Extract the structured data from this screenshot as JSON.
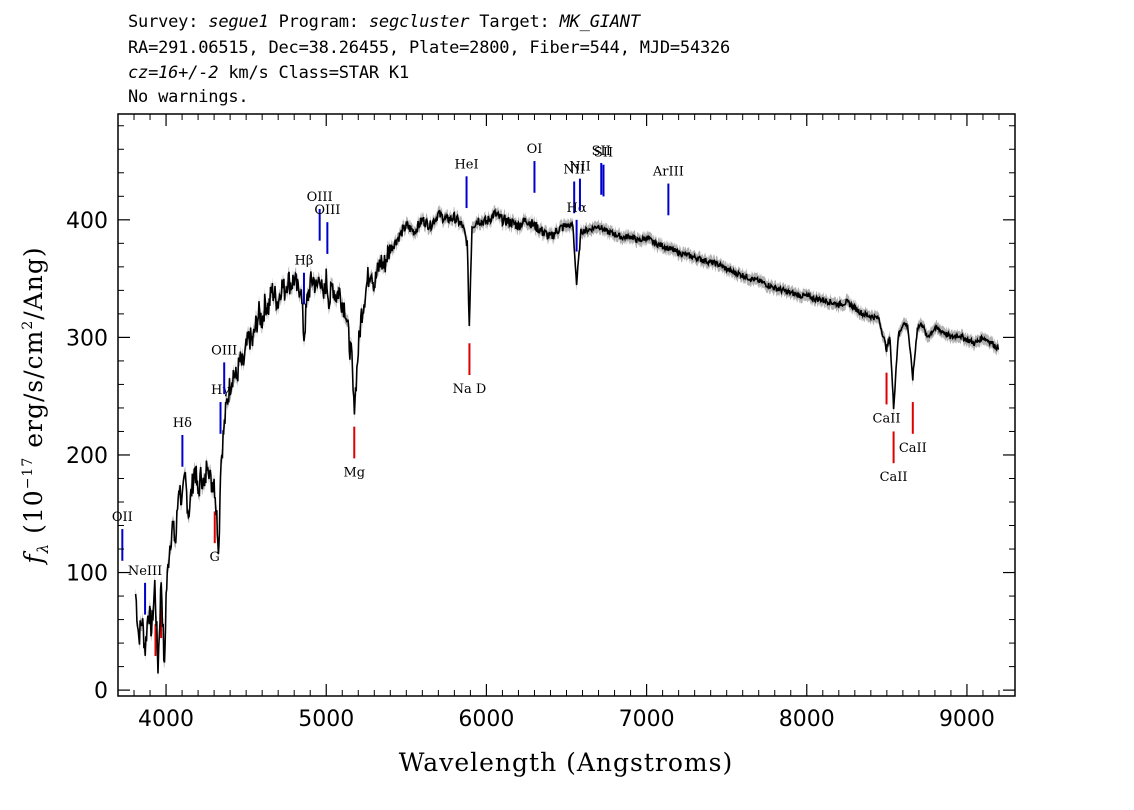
{
  "header": {
    "survey_label": "Survey:",
    "survey": "segue1",
    "program_label": "Program:",
    "program": "segcluster",
    "target_label": "Target:",
    "target": "MK_GIANT",
    "line2": "RA=291.06515, Dec=38.26455, Plate=2800, Fiber=544, MJD=54326",
    "cz": "cz=16+/-2",
    "cz_units": "km/s Class=STAR K1",
    "line4": "No warnings."
  },
  "chart_data": {
    "type": "line",
    "title": "",
    "xlabel": "Wavelength (Angstroms)",
    "ylabel": "f_λ (10^-17 erg/s/cm^2/Ang)",
    "xlim": [
      3700,
      9300
    ],
    "ylim": [
      -5,
      490
    ],
    "xticks": [
      4000,
      5000,
      6000,
      7000,
      8000,
      9000
    ],
    "yticks": [
      0,
      100,
      200,
      300,
      400
    ],
    "grid": false,
    "legend": "none",
    "series": [
      {
        "color": "#000000",
        "x": [
          3810,
          3830,
          3850,
          3870,
          3890,
          3910,
          3930,
          3950,
          3970,
          3990,
          4000,
          4020,
          4040,
          4060,
          4080,
          4100,
          4120,
          4140,
          4160,
          4180,
          4200,
          4220,
          4240,
          4260,
          4280,
          4300,
          4310,
          4320,
          4330,
          4340,
          4360,
          4380,
          4400,
          4420,
          4440,
          4460,
          4480,
          4500,
          4520,
          4540,
          4560,
          4580,
          4600,
          4620,
          4640,
          4660,
          4680,
          4700,
          4720,
          4740,
          4760,
          4780,
          4800,
          4820,
          4840,
          4861,
          4880,
          4900,
          4920,
          4940,
          4960,
          4980,
          5000,
          5020,
          5040,
          5060,
          5080,
          5100,
          5120,
          5140,
          5160,
          5172,
          5183,
          5200,
          5220,
          5240,
          5260,
          5280,
          5300,
          5320,
          5340,
          5360,
          5380,
          5400,
          5450,
          5500,
          5550,
          5600,
          5650,
          5700,
          5750,
          5800,
          5850,
          5880,
          5893,
          5910,
          5950,
          6000,
          6050,
          6100,
          6150,
          6200,
          6250,
          6300,
          6350,
          6400,
          6450,
          6500,
          6540,
          6563,
          6590,
          6650,
          6700,
          6750,
          6800,
          6850,
          6900,
          6950,
          7000,
          7050,
          7100,
          7150,
          7200,
          7250,
          7300,
          7350,
          7400,
          7450,
          7500,
          7550,
          7600,
          7650,
          7700,
          7750,
          7800,
          7850,
          7900,
          7950,
          8000,
          8050,
          8100,
          8150,
          8200,
          8250,
          8300,
          8350,
          8400,
          8450,
          8498,
          8520,
          8542,
          8570,
          8600,
          8630,
          8662,
          8690,
          8720,
          8750,
          8800,
          8850,
          8900,
          8950,
          9000,
          9050,
          9100,
          9150,
          9200
        ],
        "y": [
          82,
          45,
          60,
          35,
          70,
          50,
          90,
          20,
          95,
          15,
          80,
          120,
          140,
          125,
          175,
          160,
          180,
          150,
          170,
          190,
          165,
          185,
          170,
          200,
          175,
          180,
          160,
          140,
          120,
          190,
          220,
          245,
          260,
          270,
          265,
          280,
          275,
          290,
          300,
          295,
          310,
          320,
          315,
          330,
          325,
          340,
          335,
          330,
          345,
          340,
          350,
          345,
          350,
          340,
          345,
          300,
          330,
          345,
          350,
          340,
          355,
          330,
          350,
          330,
          345,
          335,
          340,
          330,
          325,
          300,
          280,
          240,
          255,
          290,
          320,
          335,
          350,
          360,
          345,
          355,
          365,
          360,
          370,
          375,
          385,
          395,
          390,
          400,
          395,
          405,
          400,
          402,
          395,
          380,
          310,
          395,
          400,
          398,
          405,
          400,
          398,
          395,
          400,
          395,
          390,
          385,
          392,
          395,
          395,
          345,
          390,
          392,
          395,
          390,
          388,
          385,
          386,
          382,
          385,
          380,
          378,
          375,
          372,
          370,
          368,
          366,
          364,
          362,
          358,
          355,
          353,
          350,
          348,
          345,
          342,
          340,
          338,
          336,
          335,
          333,
          332,
          330,
          328,
          330,
          325,
          320,
          318,
          316,
          290,
          300,
          240,
          300,
          312,
          310,
          265,
          308,
          312,
          300,
          308,
          305,
          300,
          302,
          298,
          295,
          300,
          296,
          290
        ]
      }
    ],
    "emission_lines": [
      {
        "label": "Hδ",
        "x": 4102
      },
      {
        "label": "NeIII",
        "x": 3869
      },
      {
        "label": "OII",
        "x": 3727
      },
      {
        "label": "Hγ",
        "x": 4340
      },
      {
        "label": "OIII",
        "x": 4363
      },
      {
        "label": "Hβ",
        "x": 4861
      },
      {
        "label": "OIII",
        "x": 4959
      },
      {
        "label": "OIII",
        "x": 5007
      },
      {
        "label": "HeI",
        "x": 5876
      },
      {
        "label": "OI",
        "x": 6300
      },
      {
        "label": "NII",
        "x": 6548
      },
      {
        "label": "Hα",
        "x": 6563
      },
      {
        "label": "NII",
        "x": 6584
      },
      {
        "label": "SII",
        "x": 6717
      },
      {
        "label": "SII",
        "x": 6731
      },
      {
        "label": "ArIII",
        "x": 7136
      }
    ],
    "absorption_lines": [
      {
        "label": "G",
        "x": 4304
      },
      {
        "label": "Mg",
        "x": 5175
      },
      {
        "label": "Na D",
        "x": 5894
      },
      {
        "label": "CaII",
        "x": 8498
      },
      {
        "label": "CaII",
        "x": 8542
      },
      {
        "label": "CaII",
        "x": 8662
      },
      {
        "label": "",
        "x": 3934
      },
      {
        "label": "",
        "x": 3969
      }
    ],
    "colors": {
      "spectrum": "#000000",
      "error": "#b0b0b0",
      "emission": "#0000cc",
      "absorption": "#dd0000"
    }
  }
}
